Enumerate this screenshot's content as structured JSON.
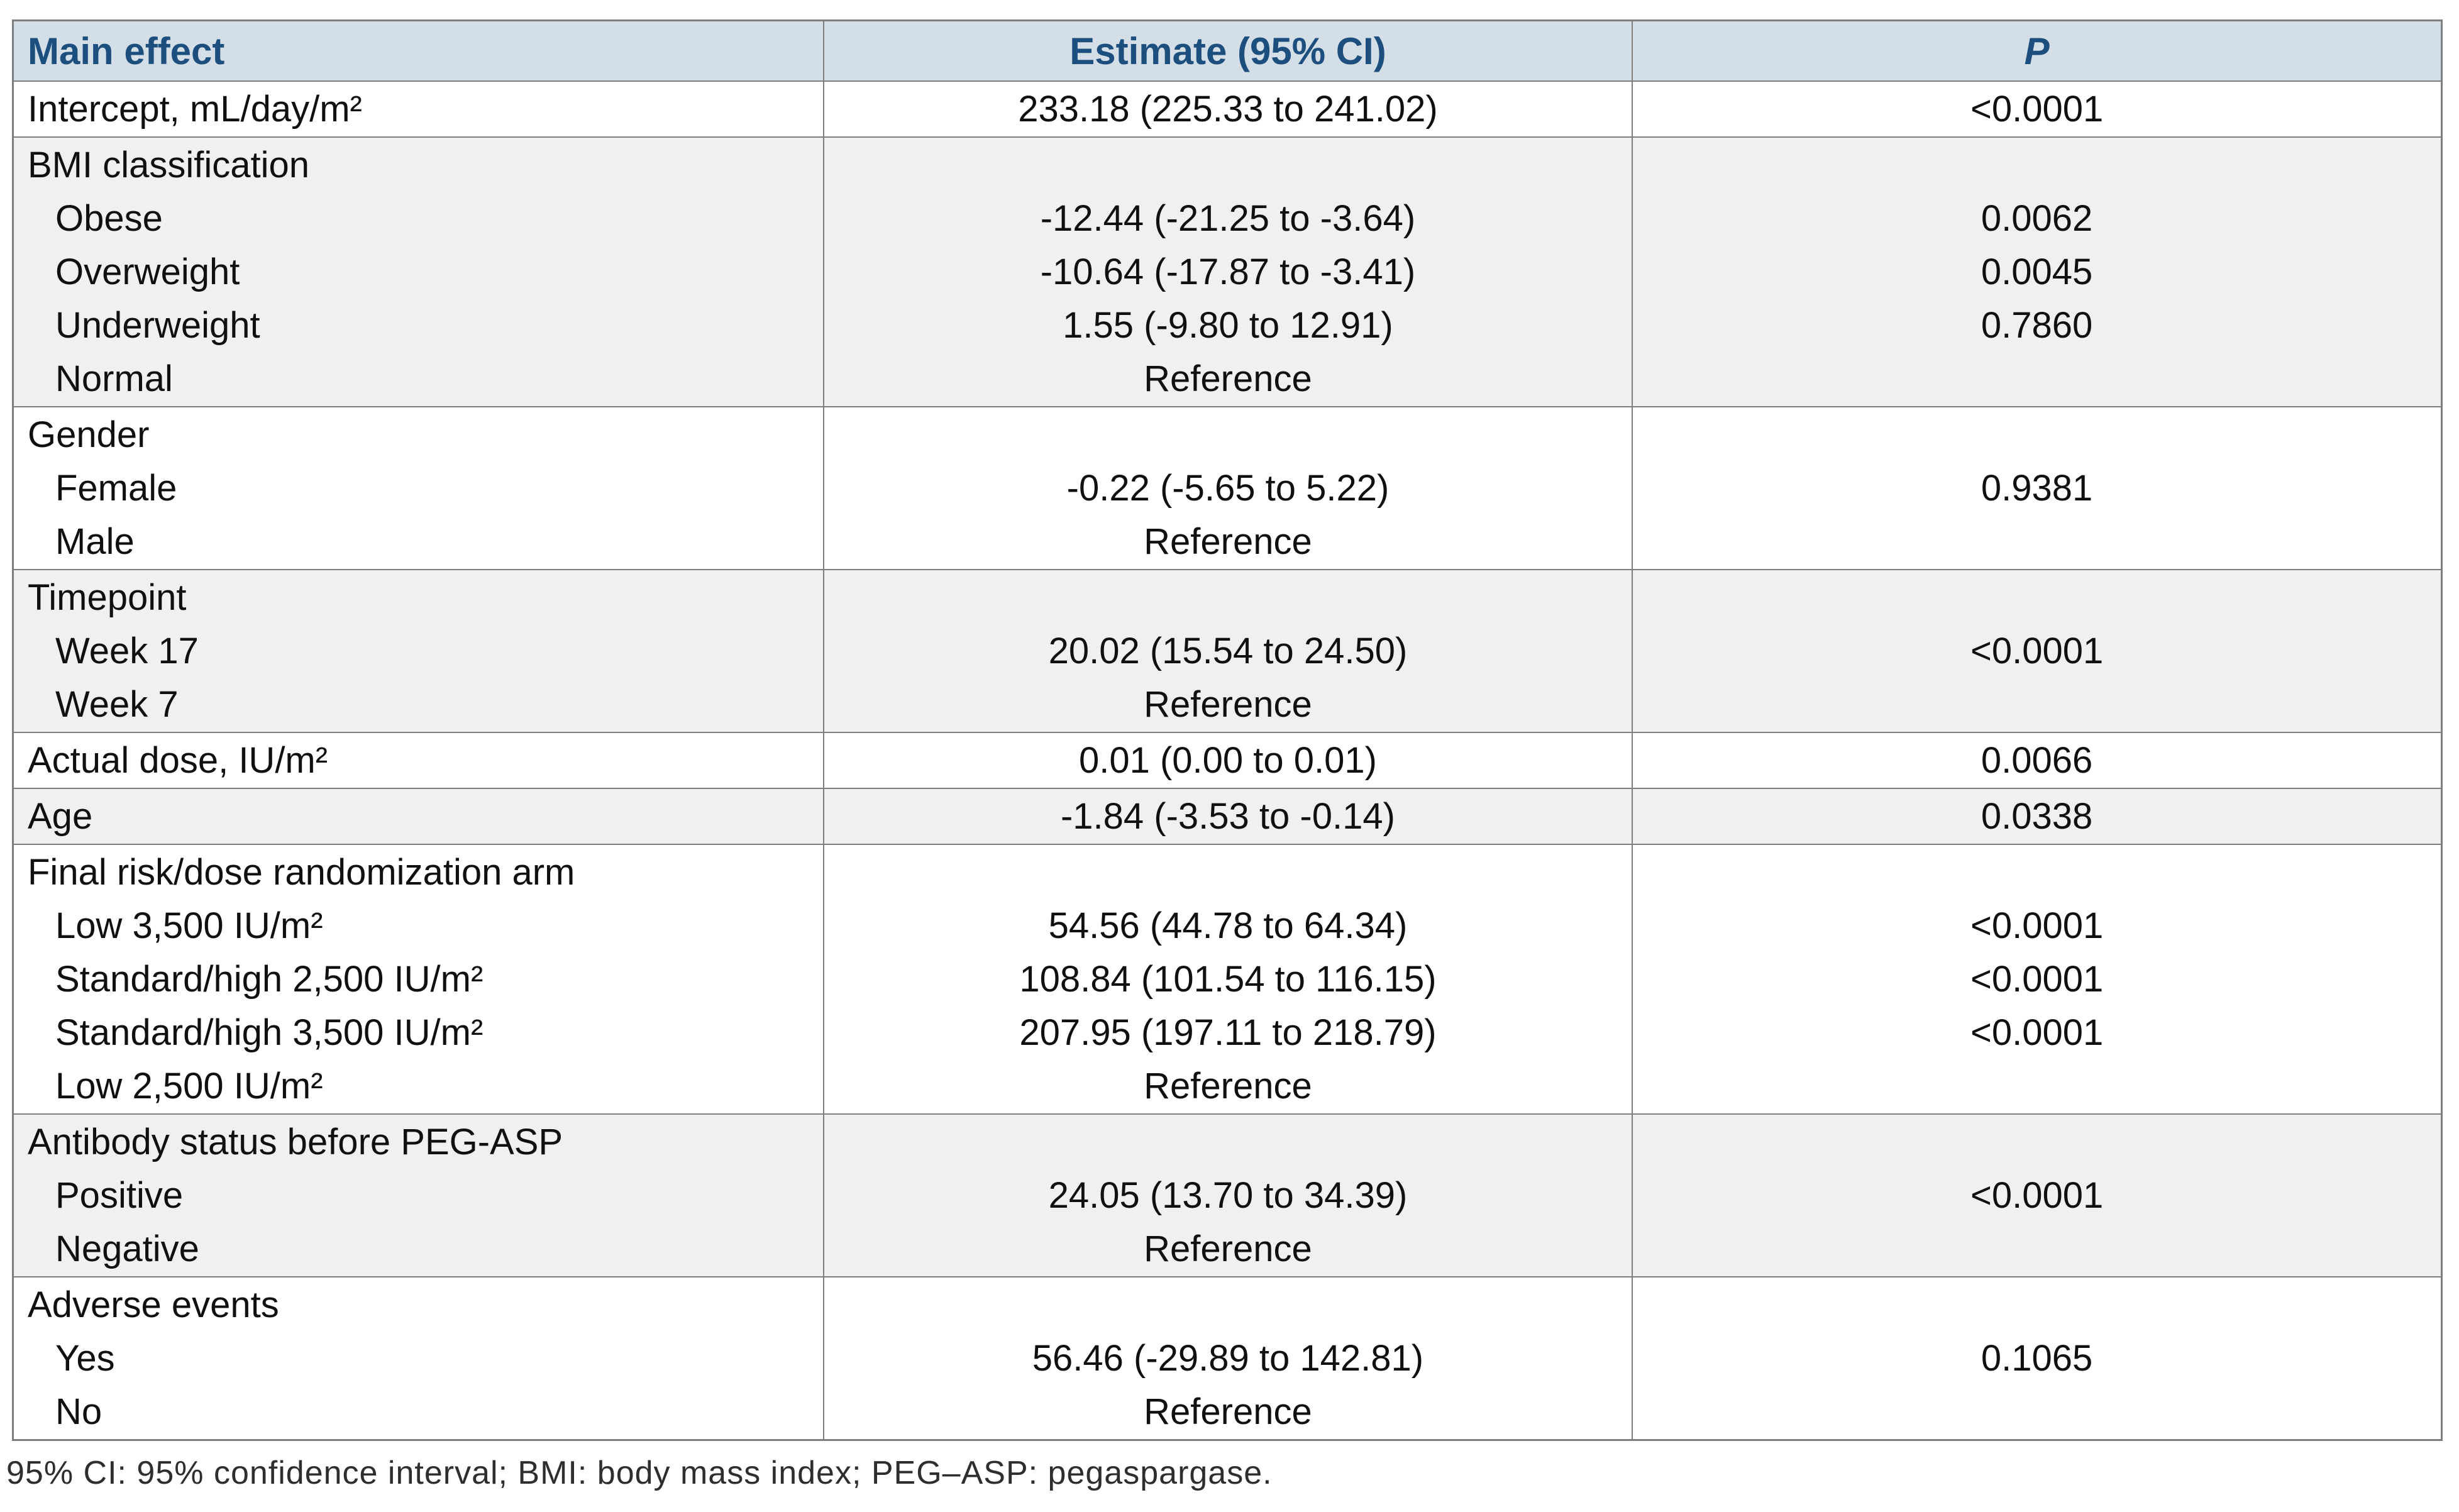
{
  "table": {
    "header": {
      "main_effect": "Main effect",
      "estimate": "Estimate (95% CI)",
      "p": "P"
    },
    "blocks": [
      {
        "shade": "white",
        "lines": [
          {
            "label": "Intercept, mL/day/m²",
            "indent": false,
            "estimate": "233.18 (225.33 to 241.02)",
            "p": "<0.0001"
          }
        ]
      },
      {
        "shade": "gray",
        "lines": [
          {
            "label": "BMI classification",
            "indent": false,
            "estimate": "",
            "p": ""
          },
          {
            "label": "Obese",
            "indent": true,
            "estimate": "-12.44 (-21.25 to -3.64)",
            "p": "0.0062"
          },
          {
            "label": "Overweight",
            "indent": true,
            "estimate": "-10.64 (-17.87 to -3.41)",
            "p": "0.0045"
          },
          {
            "label": "Underweight",
            "indent": true,
            "estimate": "1.55 (-9.80 to 12.91)",
            "p": "0.7860"
          },
          {
            "label": "Normal",
            "indent": true,
            "estimate": "Reference",
            "p": ""
          }
        ]
      },
      {
        "shade": "white",
        "lines": [
          {
            "label": "Gender",
            "indent": false,
            "estimate": "",
            "p": ""
          },
          {
            "label": "Female",
            "indent": true,
            "estimate": "-0.22 (-5.65 to 5.22)",
            "p": "0.9381"
          },
          {
            "label": "Male",
            "indent": true,
            "estimate": "Reference",
            "p": ""
          }
        ]
      },
      {
        "shade": "gray",
        "lines": [
          {
            "label": "Timepoint",
            "indent": false,
            "estimate": "",
            "p": ""
          },
          {
            "label": "Week 17",
            "indent": true,
            "estimate": "20.02 (15.54 to 24.50)",
            "p": "<0.0001"
          },
          {
            "label": "Week 7",
            "indent": true,
            "estimate": "Reference",
            "p": ""
          }
        ]
      },
      {
        "shade": "white",
        "lines": [
          {
            "label": "Actual dose, IU/m²",
            "indent": false,
            "estimate": "0.01 (0.00 to 0.01)",
            "p": "0.0066"
          }
        ]
      },
      {
        "shade": "gray",
        "lines": [
          {
            "label": "Age",
            "indent": false,
            "estimate": "-1.84 (-3.53 to -0.14)",
            "p": "0.0338"
          }
        ]
      },
      {
        "shade": "white",
        "lines": [
          {
            "label": "Final risk/dose randomization arm",
            "indent": false,
            "estimate": "",
            "p": ""
          },
          {
            "label": "Low 3,500 IU/m²",
            "indent": true,
            "estimate": "54.56 (44.78 to 64.34)",
            "p": "<0.0001"
          },
          {
            "label": "Standard/high 2,500 IU/m²",
            "indent": true,
            "estimate": "108.84 (101.54 to 116.15)",
            "p": "<0.0001"
          },
          {
            "label": "Standard/high 3,500 IU/m²",
            "indent": true,
            "estimate": "207.95 (197.11 to 218.79)",
            "p": "<0.0001"
          },
          {
            "label": "Low 2,500 IU/m²",
            "indent": true,
            "estimate": "Reference",
            "p": ""
          }
        ]
      },
      {
        "shade": "gray",
        "lines": [
          {
            "label": "Antibody status before PEG-ASP",
            "indent": false,
            "estimate": "",
            "p": ""
          },
          {
            "label": "Positive",
            "indent": true,
            "estimate": "24.05 (13.70 to 34.39)",
            "p": "<0.0001"
          },
          {
            "label": "Negative",
            "indent": true,
            "estimate": "Reference",
            "p": ""
          }
        ]
      },
      {
        "shade": "white",
        "lines": [
          {
            "label": "Adverse events",
            "indent": false,
            "estimate": "",
            "p": ""
          },
          {
            "label": "Yes",
            "indent": true,
            "estimate": "56.46 (-29.89 to 142.81)",
            "p": "0.1065"
          },
          {
            "label": "No",
            "indent": true,
            "estimate": "Reference",
            "p": ""
          }
        ]
      }
    ]
  },
  "footnote": {
    "text": "95% CI: 95% confidence interval; BMI: body mass index; PEG–ASP: pegaspargase."
  },
  "colors": {
    "header_bg": "#d3dee7",
    "header_text": "#1c4e7e",
    "border": "#7e7e7e",
    "stripe": "#f0f0ef",
    "body_text": "#101010",
    "footnote_text": "#2e2e2e"
  },
  "chart_data": {
    "type": "table",
    "title": "Mixed-model main effects on clearance",
    "headers": [
      "Main effect",
      "Estimate (95% CI)",
      "P"
    ],
    "rows": [
      [
        "Intercept, mL/day/m²",
        "233.18 (225.33 to 241.02)",
        "<0.0001"
      ],
      [
        "BMI classification",
        "",
        ""
      ],
      [
        "  Obese",
        "-12.44 (-21.25 to -3.64)",
        "0.0062"
      ],
      [
        "  Overweight",
        "-10.64 (-17.87 to -3.41)",
        "0.0045"
      ],
      [
        "  Underweight",
        "1.55 (-9.80 to 12.91)",
        "0.7860"
      ],
      [
        "  Normal",
        "Reference",
        ""
      ],
      [
        "Gender",
        "",
        ""
      ],
      [
        "  Female",
        "-0.22 (-5.65 to 5.22)",
        "0.9381"
      ],
      [
        "  Male",
        "Reference",
        ""
      ],
      [
        "Timepoint",
        "",
        ""
      ],
      [
        "  Week 17",
        "20.02 (15.54 to 24.50)",
        "<0.0001"
      ],
      [
        "  Week 7",
        "Reference",
        ""
      ],
      [
        "Actual dose, IU/m²",
        "0.01 (0.00 to 0.01)",
        "0.0066"
      ],
      [
        "Age",
        "-1.84 (-3.53 to -0.14)",
        "0.0338"
      ],
      [
        "Final risk/dose randomization arm",
        "",
        ""
      ],
      [
        "  Low 3,500 IU/m²",
        "54.56 (44.78 to 64.34)",
        "<0.0001"
      ],
      [
        "  Standard/high 2,500 IU/m²",
        "108.84 (101.54 to 116.15)",
        "<0.0001"
      ],
      [
        "  Standard/high 3,500 IU/m²",
        "207.95 (197.11 to 218.79)",
        "<0.0001"
      ],
      [
        "  Low 2,500 IU/m²",
        "Reference",
        ""
      ],
      [
        "Antibody status before PEG-ASP",
        "",
        ""
      ],
      [
        "  Positive",
        "24.05 (13.70 to 34.39)",
        "<0.0001"
      ],
      [
        "  Negative",
        "Reference",
        ""
      ],
      [
        "Adverse events",
        "",
        ""
      ],
      [
        "  Yes",
        "56.46 (-29.89 to 142.81)",
        "0.1065"
      ],
      [
        "  No",
        "Reference",
        ""
      ]
    ]
  }
}
